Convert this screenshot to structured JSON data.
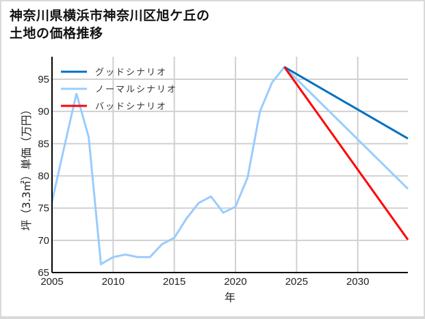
{
  "title": "神奈川県横浜市神奈川区旭ケ丘の\n土地の価格推移",
  "chart_data": {
    "type": "line",
    "title": "神奈川県横浜市神奈川区旭ケ丘の土地の価格推移",
    "xlabel": "年",
    "ylabel": "坪（3.3㎡）単価（万円）",
    "xlim": [
      2005,
      2034.1
    ],
    "ylim": [
      65,
      98.5
    ],
    "xticks": [
      2005,
      2010,
      2015,
      2020,
      2025,
      2030
    ],
    "yticks": [
      65,
      70,
      75,
      80,
      85,
      90,
      95
    ],
    "grid": true,
    "legend_position": "upper left",
    "series": [
      {
        "name": "グッドシナリオ",
        "color": "#0070c0",
        "x": [
          2024,
          2034.1
        ],
        "values": [
          96.9,
          85.8
        ]
      },
      {
        "name": "ノーマルシナリオ",
        "color": "#99ccff",
        "x": [
          2005,
          2006,
          2007,
          2008,
          2009,
          2010,
          2011,
          2012,
          2013,
          2014,
          2015,
          2016,
          2017,
          2018,
          2019,
          2020,
          2021,
          2022,
          2023,
          2024,
          2034.1
        ],
        "values": [
          76.0,
          84.5,
          92.8,
          86.0,
          66.3,
          67.4,
          67.8,
          67.4,
          67.4,
          69.4,
          70.4,
          73.4,
          75.8,
          76.8,
          74.3,
          75.2,
          79.8,
          90.0,
          94.5,
          96.9,
          78.0
        ]
      },
      {
        "name": "バッドシナリオ",
        "color": "#ff0000",
        "x": [
          2024,
          2034.1
        ],
        "values": [
          96.9,
          70.1
        ]
      }
    ]
  },
  "colors": {
    "grid": "#d0d0d0",
    "axis": "#000000"
  }
}
